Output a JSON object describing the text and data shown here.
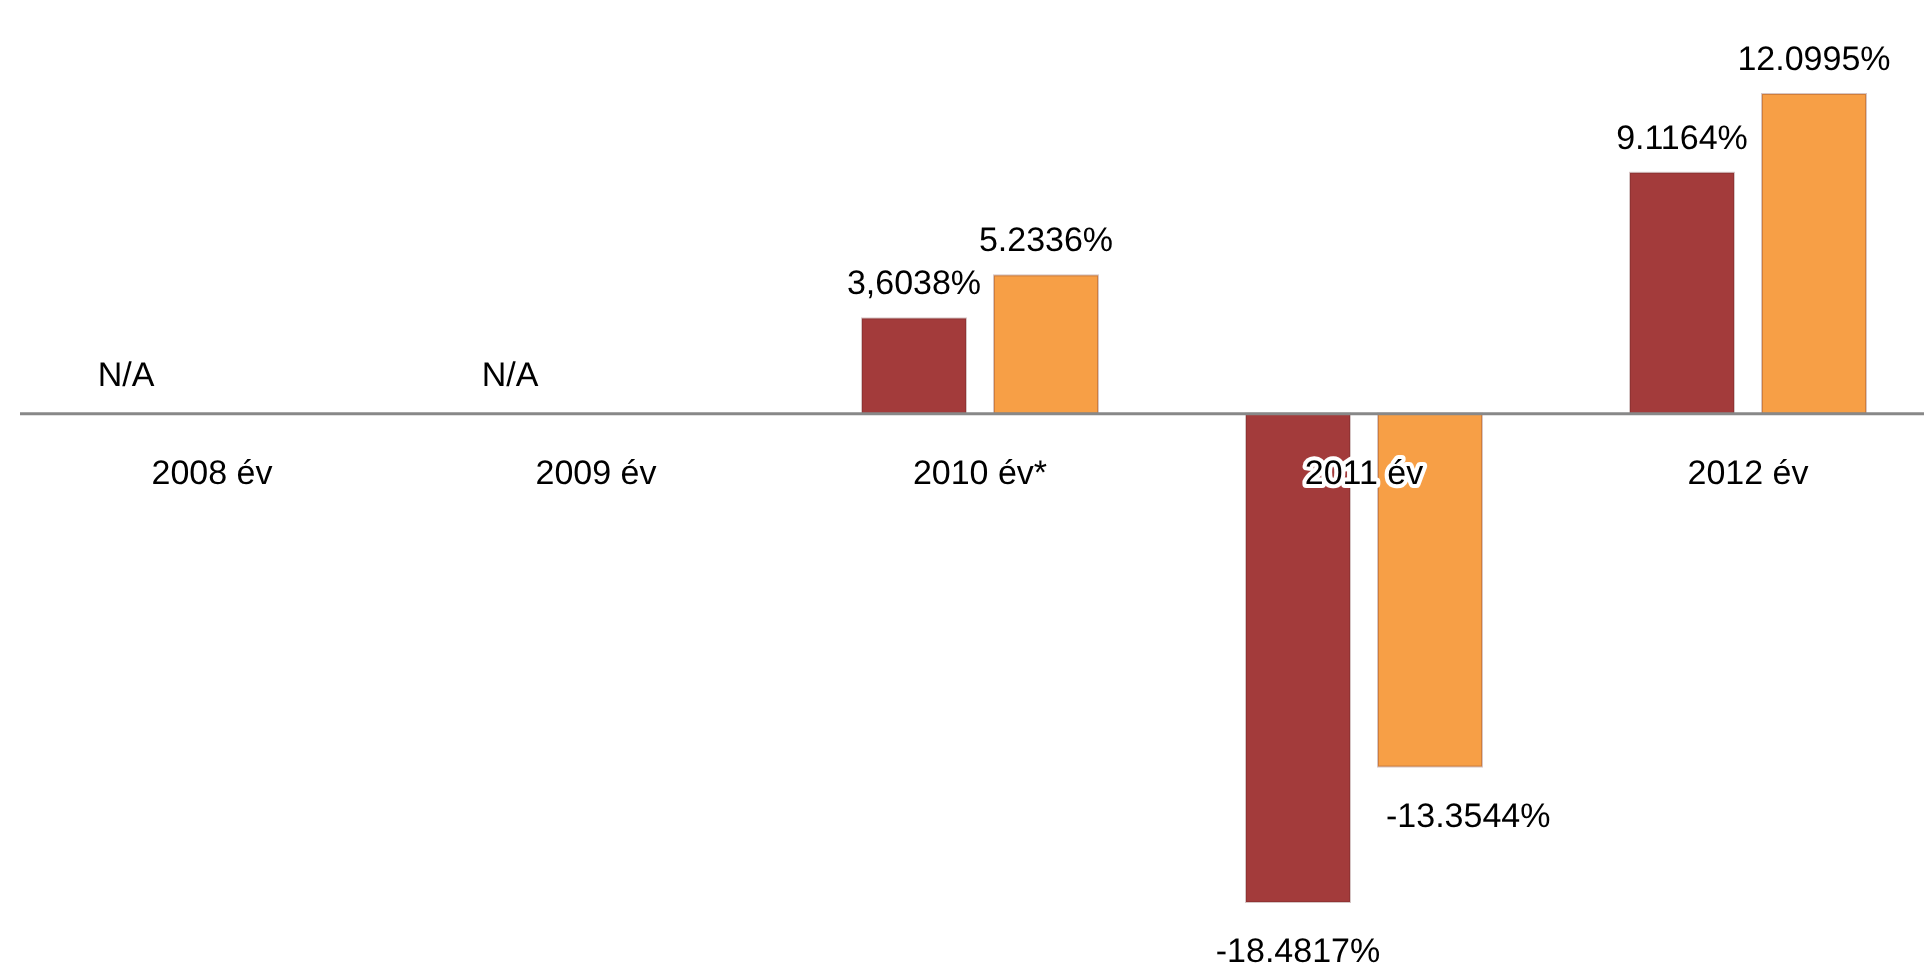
{
  "chart_data": {
    "type": "bar",
    "categories": [
      "2008 év",
      "2009 év",
      "2010 év*",
      "2011 év",
      "2012 év"
    ],
    "series": [
      {
        "color": "#a33b3b",
        "values": [
          null,
          null,
          3.6038,
          -18.4817,
          9.1164
        ],
        "value_labels": [
          "N/A",
          "N/A",
          "3,6038%",
          "-18.4817%",
          "9.1164%"
        ]
      },
      {
        "color": "#f79f46",
        "values": [
          null,
          null,
          5.2336,
          -13.3544,
          12.0995
        ],
        "value_labels": [
          null,
          null,
          "5.2336%",
          "-13.3544%",
          "12.0995%"
        ]
      }
    ]
  }
}
